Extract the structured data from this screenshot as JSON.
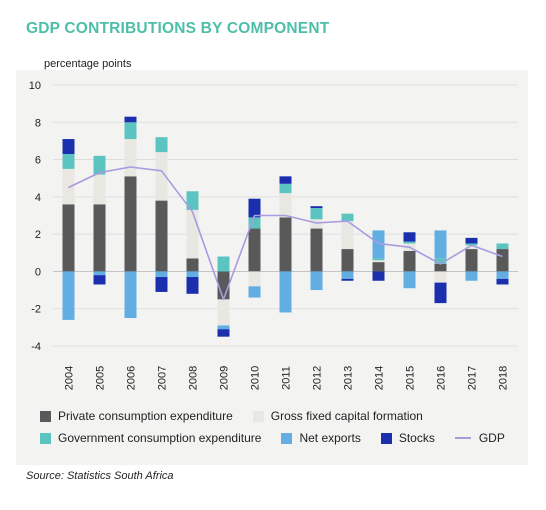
{
  "title": "GDP CONTRIBUTIONS BY COMPONENT",
  "source": "Source: Statistics South Africa",
  "colors": {
    "private": "#595959",
    "gfcf": "#e8e7e1",
    "government": "#5bc4c0",
    "net_exports": "#62aee2",
    "stocks": "#1b2fae",
    "gdp": "#a99be0",
    "title": "#4dbfa8",
    "plot_bg": "#f3f3f2"
  },
  "chart_data": {
    "type": "bar",
    "stacked": true,
    "ylabel": "percentage points",
    "xlabel": "",
    "ylim": [
      -4,
      10
    ],
    "yticks": [
      -4,
      -2,
      0,
      2,
      4,
      6,
      8,
      10
    ],
    "grid": true,
    "legend_position": "bottom",
    "categories": [
      "2004",
      "2005",
      "2006",
      "2007",
      "2008",
      "2009",
      "2010",
      "2011",
      "2012",
      "2013",
      "2014",
      "2015",
      "2016",
      "2017",
      "2018"
    ],
    "series": [
      {
        "name": "Private consumption expenditure",
        "key": "private",
        "type": "bar",
        "values": [
          3.6,
          3.6,
          5.1,
          3.8,
          0.7,
          -1.5,
          2.3,
          2.9,
          2.3,
          1.2,
          0.5,
          1.1,
          0.4,
          1.2,
          1.2
        ]
      },
      {
        "name": "Gross fixed capital formation",
        "key": "gfcf",
        "type": "bar",
        "values": [
          1.9,
          1.6,
          2.0,
          2.6,
          2.6,
          -1.4,
          -0.8,
          1.3,
          0.5,
          1.5,
          0.1,
          0.4,
          -0.6,
          0.2,
          0.0
        ]
      },
      {
        "name": "Government consumption expenditure",
        "key": "government",
        "type": "bar",
        "values": [
          0.8,
          1.0,
          0.9,
          0.8,
          1.0,
          0.8,
          0.6,
          0.5,
          0.6,
          0.4,
          0.1,
          0.1,
          0.3,
          0.1,
          0.3
        ]
      },
      {
        "name": "Net exports",
        "key": "net_exports",
        "type": "bar",
        "values": [
          -2.6,
          -0.2,
          -2.5,
          -0.3,
          -0.3,
          -0.2,
          -0.6,
          -2.2,
          -1.0,
          -0.4,
          1.5,
          -0.9,
          1.5,
          -0.5,
          -0.4
        ]
      },
      {
        "name": "Stocks",
        "key": "stocks",
        "type": "bar",
        "values": [
          0.8,
          -0.5,
          0.3,
          -0.8,
          -0.9,
          -0.4,
          1.0,
          0.4,
          0.1,
          -0.1,
          -0.5,
          0.5,
          -1.1,
          0.3,
          -0.3
        ]
      },
      {
        "name": "GDP",
        "key": "gdp",
        "type": "line",
        "values": [
          4.5,
          5.3,
          5.6,
          5.4,
          3.2,
          -1.5,
          3.0,
          3.0,
          2.6,
          2.7,
          1.5,
          1.3,
          0.4,
          1.4,
          0.8
        ]
      }
    ]
  }
}
